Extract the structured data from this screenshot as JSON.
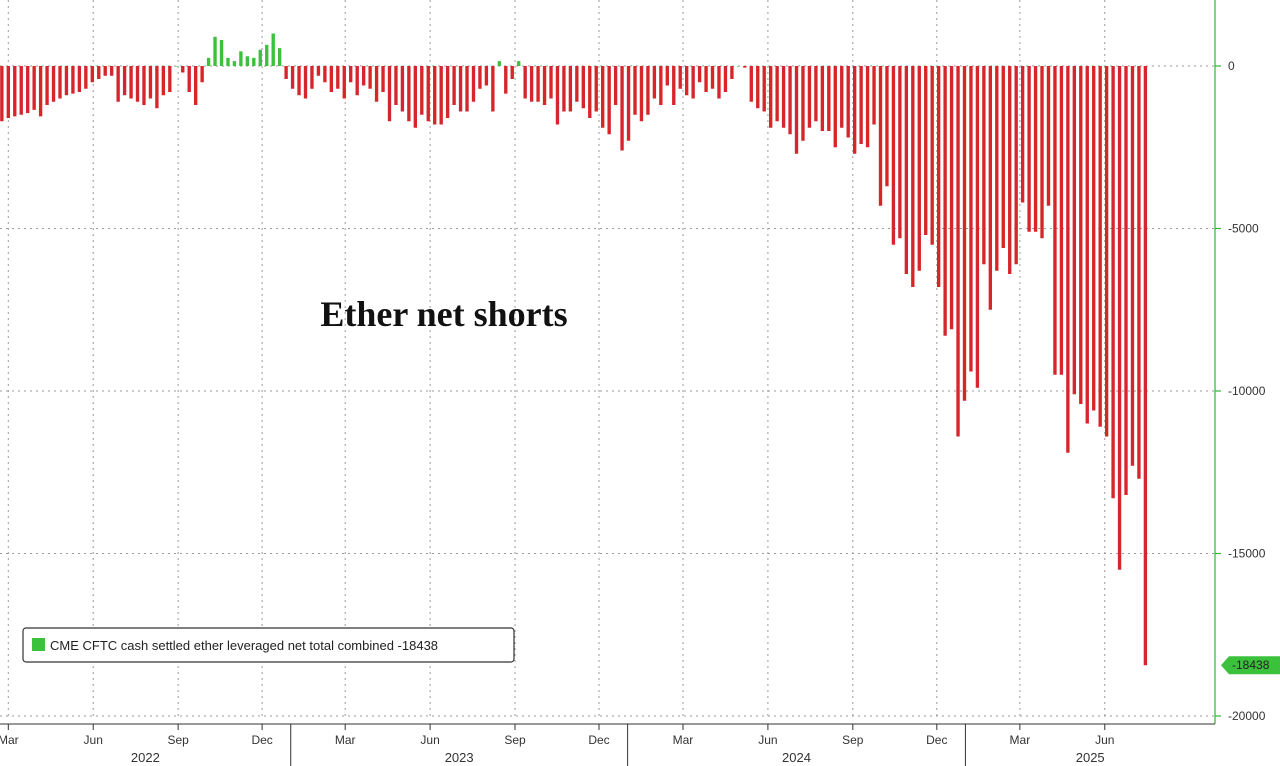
{
  "chart_data": {
    "type": "bar",
    "title": "Ether net shorts",
    "legend": {
      "placement": "bottom-left",
      "label": "CME CFTC cash settled ether leveraged net total combined -18438",
      "swatch_color": "#3cc13c"
    },
    "colors": {
      "positive": "#3cc13c",
      "negative": "#d6262b",
      "axis": "#2fb82f",
      "last_value_badge": "#3cc13c"
    },
    "last_value_label": "-18438",
    "y_axis": {
      "side": "right",
      "ylim": [
        -20000,
        1500
      ],
      "ticks": [
        0,
        -5000,
        -10000,
        -15000,
        -20000
      ],
      "tick_labels": [
        "0",
        "-5000",
        "-10000",
        "-15000",
        "-20000"
      ]
    },
    "x_axis": {
      "month_ticks": [
        {
          "label": "Mar",
          "date": "2022-03-01"
        },
        {
          "label": "Jun",
          "date": "2022-06-01"
        },
        {
          "label": "Sep",
          "date": "2022-09-01"
        },
        {
          "label": "Dec",
          "date": "2022-12-01"
        },
        {
          "label": "Mar",
          "date": "2023-03-01"
        },
        {
          "label": "Jun",
          "date": "2023-06-01"
        },
        {
          "label": "Sep",
          "date": "2023-09-01"
        },
        {
          "label": "Dec",
          "date": "2023-12-01"
        },
        {
          "label": "Mar",
          "date": "2024-03-01"
        },
        {
          "label": "Jun",
          "date": "2024-06-01"
        },
        {
          "label": "Sep",
          "date": "2024-09-01"
        },
        {
          "label": "Dec",
          "date": "2024-12-01"
        },
        {
          "label": "Mar",
          "date": "2025-03-01"
        },
        {
          "label": "Jun",
          "date": "2025-06-01"
        }
      ],
      "year_labels": [
        "2022",
        "2023",
        "2024",
        "2025"
      ],
      "range": [
        "2022-02-20",
        "2025-09-10"
      ]
    },
    "grid": true,
    "series": [
      {
        "start_date": "2022-02-22",
        "interval_days": 7,
        "values": [
          -1700,
          -1600,
          -1550,
          -1500,
          -1450,
          -1350,
          -1550,
          -1200,
          -1100,
          -1000,
          -900,
          -850,
          -800,
          -700,
          -500,
          -400,
          -300,
          -300,
          -1100,
          -900,
          -1000,
          -1100,
          -1200,
          -1000,
          -1300,
          -900,
          -800,
          0,
          -200,
          -800,
          -1200,
          -500,
          250,
          900,
          800,
          250,
          150,
          450,
          300,
          250,
          500,
          650,
          1000,
          550,
          -400,
          -700,
          -900,
          -1000,
          -700,
          -300,
          -500,
          -800,
          -700,
          -1000,
          -500,
          -900,
          -600,
          -700,
          -1100,
          -800,
          -1700,
          -1200,
          -1400,
          -1700,
          -1900,
          -1500,
          -1700,
          -1800,
          -1800,
          -1600,
          -1200,
          -1400,
          -1400,
          -1100,
          -700,
          -600,
          -1400,
          150,
          -850,
          -400,
          150,
          -1000,
          -1100,
          -1100,
          -1200,
          -1000,
          -1800,
          -1400,
          -1400,
          -1100,
          -1300,
          -1600,
          -1400,
          -1900,
          -2100,
          -1200,
          -2600,
          -2300,
          -1500,
          -1700,
          -1500,
          -1000,
          -1200,
          -600,
          -1200,
          -700,
          -900,
          -1000,
          -500,
          -800,
          -700,
          -1000,
          -800,
          -400,
          0,
          -50,
          -1100,
          -1300,
          -1400,
          -1900,
          -1700,
          -1900,
          -2100,
          -2700,
          -2300,
          -1900,
          -1700,
          -2000,
          -2000,
          -2500,
          -1900,
          -2200,
          -2700,
          -2400,
          -2500,
          -1800,
          -4300,
          -3700,
          -5500,
          -5300,
          -6400,
          -6800,
          -6300,
          -5200,
          -5500,
          -6800,
          -8300,
          -8100,
          -11400,
          -10300,
          -9400,
          -9900,
          -6100,
          -7500,
          -6300,
          -5600,
          -6400,
          -6100,
          -4200,
          -5100,
          -5100,
          -5300,
          -4300,
          -9500,
          -9500,
          -11900,
          -10100,
          -10400,
          -11000,
          -10600,
          -11100,
          -11400,
          -13300,
          -15500,
          -13200,
          -12300,
          -12700,
          -18438
        ]
      }
    ]
  }
}
